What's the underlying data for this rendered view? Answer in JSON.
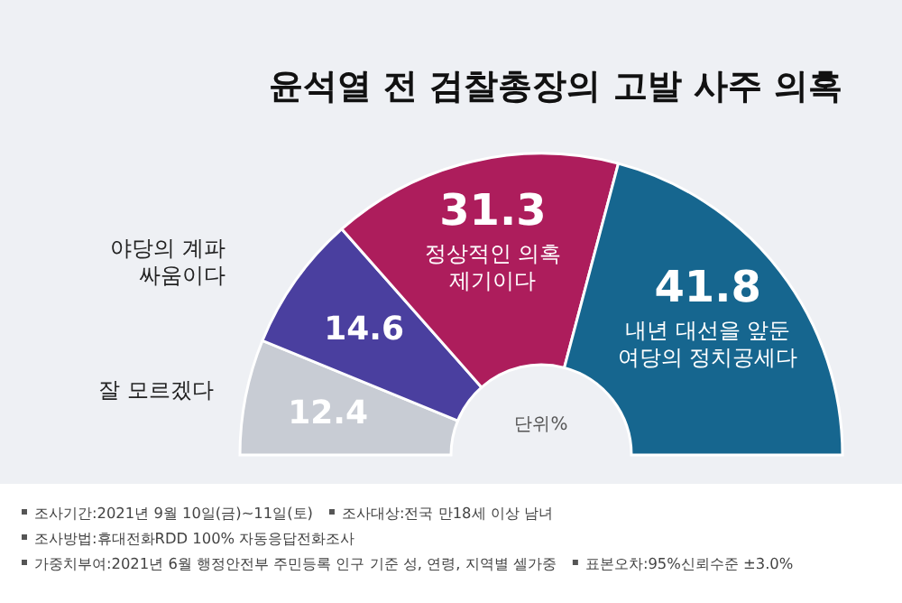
{
  "chart_data": {
    "type": "donut",
    "title": "윤석열 전 검찰총장의 고발 사주 의혹",
    "categories": [
      "잘 모르겠다",
      "야당의 계파 싸움이다",
      "정상적인 의혹 제기이다",
      "내년 대선을 앞둔 여당의 정치공세다"
    ],
    "values": [
      12.4,
      14.6,
      31.3,
      41.8
    ],
    "colors": [
      "#c8ccd4",
      "#4a3f9f",
      "#ad1d5c",
      "#16668f"
    ],
    "data_labels": true,
    "annotations": [
      "단위%",
      "조사기간:2021년 9월 10일(금)~11일(토)",
      "조사대상:전국 만18세 이상 남녀",
      "조사방법:휴대전화RDD 100% 자동응답전화조사",
      "가중치부여:2021년 6월 행정안전부 주민등록 인구 기준 성, 연령, 지역별 셀가중",
      "표본오차:95%신뢰수준 ±3.0%"
    ]
  }
}
